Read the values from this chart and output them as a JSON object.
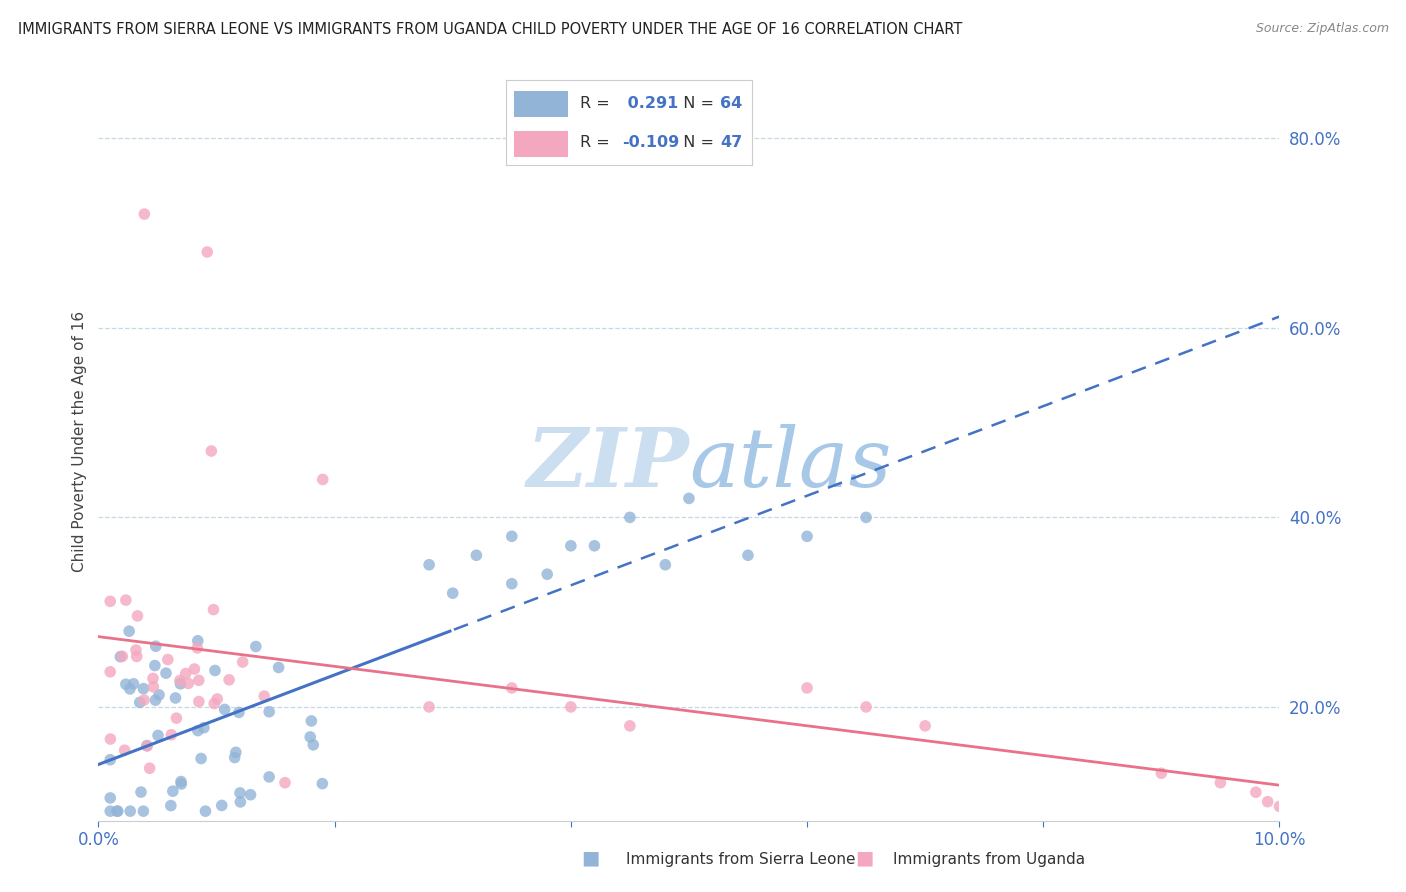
{
  "title": "IMMIGRANTS FROM SIERRA LEONE VS IMMIGRANTS FROM UGANDA CHILD POVERTY UNDER THE AGE OF 16 CORRELATION CHART",
  "source": "Source: ZipAtlas.com",
  "xlabel_blue": "Immigrants from Sierra Leone",
  "xlabel_pink": "Immigrants from Uganda",
  "ylabel": "Child Poverty Under the Age of 16",
  "R_blue": 0.291,
  "N_blue": 64,
  "R_pink": -0.109,
  "N_pink": 47,
  "blue_color": "#92b4d7",
  "pink_color": "#f4a8c0",
  "trend_blue": "#4472c4",
  "trend_pink": "#e8728a",
  "watermark_color": "#ccdff0",
  "axis_label_color": "#4472c4",
  "title_color": "#222222",
  "source_color": "#888888",
  "grid_color": "#b8cfe0",
  "legend_border_color": "#cccccc",
  "xlim": [
    0.0,
    0.1
  ],
  "ylim": [
    0.08,
    0.88
  ],
  "yticks": [
    0.2,
    0.4,
    0.6,
    0.8
  ],
  "xtick_positions": [
    0.0,
    0.02,
    0.04,
    0.06,
    0.08,
    0.1
  ],
  "xtick_labels": [
    "0.0%",
    "",
    "",
    "",
    "",
    "10.0%"
  ]
}
